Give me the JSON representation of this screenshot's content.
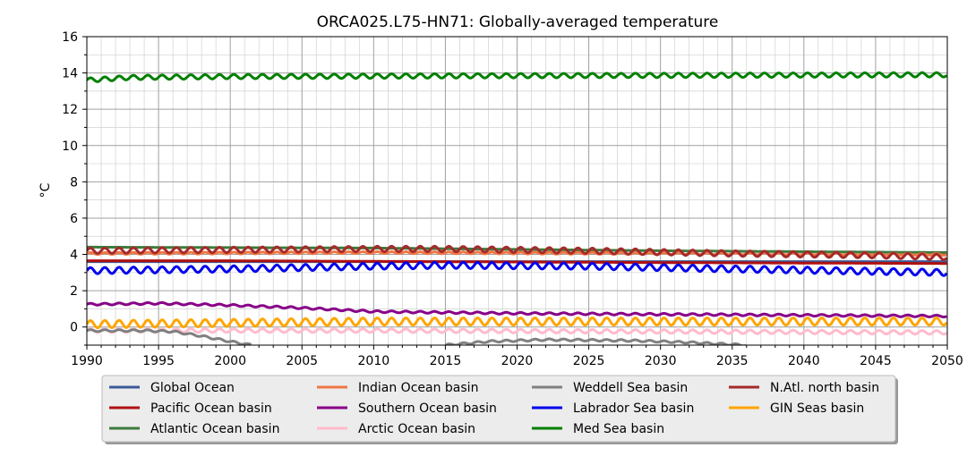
{
  "chart_data": {
    "type": "line",
    "title": "ORCA025.L75-HN71: Globally-averaged temperature",
    "xlabel": "",
    "ylabel": "°C",
    "xlim": [
      1990,
      2050
    ],
    "ylim": [
      -1,
      16
    ],
    "x_ticks": [
      1990,
      1995,
      2000,
      2005,
      2010,
      2015,
      2020,
      2025,
      2030,
      2035,
      2040,
      2045,
      2050
    ],
    "y_ticks": [
      0,
      2,
      4,
      6,
      8,
      10,
      12,
      14,
      16
    ],
    "grid": true,
    "legend_placement": "bottom",
    "series": [
      {
        "name": "Global Ocean",
        "color": "#3a5a99",
        "x": [
          1990,
          2050
        ],
        "values": [
          3.6,
          3.6
        ],
        "seasonal_amplitude": 0.0
      },
      {
        "name": "Pacific Ocean basin",
        "color": "#b01010",
        "x": [
          1990,
          2000,
          2015,
          2030,
          2050
        ],
        "values": [
          3.65,
          3.65,
          3.6,
          3.55,
          3.5
        ],
        "seasonal_amplitude": 0.0
      },
      {
        "name": "Atlantic Ocean basin",
        "color": "#3d7a3d",
        "x": [
          1990,
          2010,
          2030,
          2050
        ],
        "values": [
          4.4,
          4.35,
          4.2,
          4.1
        ],
        "seasonal_amplitude": 0.0
      },
      {
        "name": "Indian Ocean basin",
        "color": "#ee7744",
        "x": [
          1990,
          2010,
          2030,
          2050
        ],
        "values": [
          4.05,
          4.1,
          4.05,
          4.0
        ],
        "seasonal_amplitude": 0.05
      },
      {
        "name": "Southern Ocean basin",
        "color": "#880088",
        "x": [
          1990,
          1995,
          2000,
          2005,
          2010,
          2020,
          2030,
          2050
        ],
        "values": [
          1.25,
          1.3,
          1.2,
          1.05,
          0.85,
          0.75,
          0.7,
          0.6
        ],
        "seasonal_amplitude": 0.05
      },
      {
        "name": "Arctic Ocean basin",
        "color": "#ffbbcc",
        "x": [
          1990,
          2010,
          2030,
          2050
        ],
        "values": [
          -0.2,
          -0.2,
          -0.25,
          -0.3
        ],
        "seasonal_amplitude": 0.1
      },
      {
        "name": "Weddell Sea basin",
        "color": "#808080",
        "x": [
          1990,
          1994,
          1996,
          1998,
          2000,
          2001.5,
          2002,
          2014.5,
          2015,
          2018,
          2022,
          2028,
          2032,
          2036,
          2037
        ],
        "values": [
          -0.2,
          -0.2,
          -0.25,
          -0.5,
          -0.8,
          -1.0,
          null,
          null,
          -1.0,
          -0.8,
          -0.7,
          -0.75,
          -0.85,
          -1.0,
          null
        ],
        "seasonal_amplitude": 0.05
      },
      {
        "name": "Labrador Sea basin",
        "color": "#0000ee",
        "x": [
          1990,
          2000,
          2010,
          2015,
          2025,
          2035,
          2050
        ],
        "values": [
          3.1,
          3.2,
          3.35,
          3.4,
          3.35,
          3.2,
          3.0
        ],
        "seasonal_amplitude": 0.17
      },
      {
        "name": "Med Sea basin",
        "color": "#008000",
        "x": [
          1990,
          1993,
          2000,
          2020,
          2050
        ],
        "values": [
          13.6,
          13.75,
          13.8,
          13.85,
          13.9
        ],
        "seasonal_amplitude": 0.12
      },
      {
        "name": "N.Atl. north basin",
        "color": "#a52a2a",
        "x": [
          1990,
          2000,
          2010,
          2015,
          2025,
          2035,
          2045,
          2050
        ],
        "values": [
          4.2,
          4.25,
          4.3,
          4.3,
          4.2,
          4.05,
          3.95,
          3.85
        ],
        "seasonal_amplitude": 0.15
      },
      {
        "name": "GIN Seas basin",
        "color": "#ffa500",
        "x": [
          1990,
          2010,
          2030,
          2050
        ],
        "values": [
          0.15,
          0.3,
          0.3,
          0.3
        ],
        "seasonal_amplitude": 0.2
      }
    ]
  }
}
